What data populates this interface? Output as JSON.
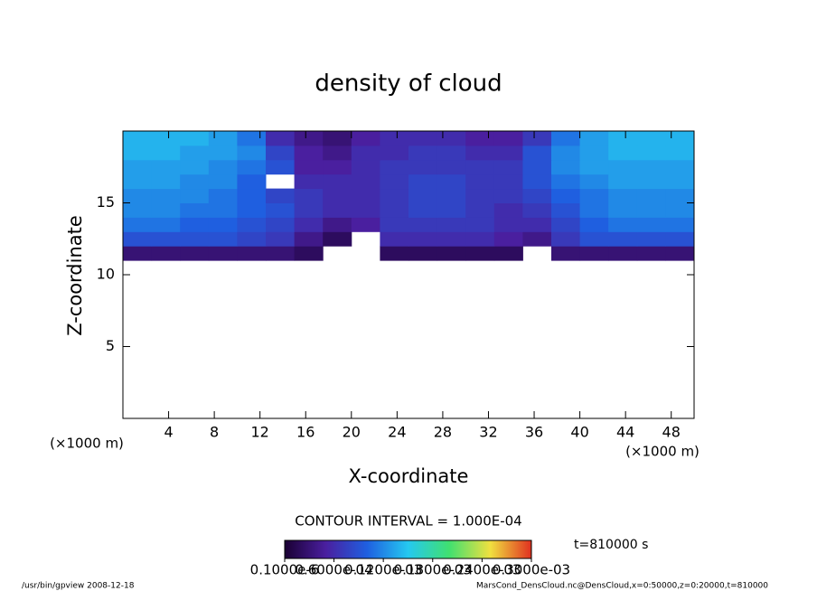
{
  "chart_data": {
    "type": "heatmap",
    "title": "density of cloud",
    "x_label": "X-coordinate",
    "y_label": "Z-coordinate",
    "x_unit": "(×1000 m)",
    "x_unit_right": "(×1000 m)",
    "contour_interval": "CONTOUR INTERVAL = 1.000E-04",
    "time_label": "t=810000 s",
    "footer_left": "/usr/bin/gpview   2008-12-18",
    "footer_right": "MarsCond_DensCloud.nc@DensCloud,x=0:50000,z=0:20000,t=810000",
    "xlim": [
      0,
      50
    ],
    "ylim": [
      0,
      20
    ],
    "xticks": [
      4,
      8,
      12,
      16,
      20,
      24,
      28,
      32,
      36,
      40,
      44,
      48
    ],
    "yticks": [
      5,
      10,
      15
    ],
    "x_edges": [
      0,
      2.5,
      5,
      7.5,
      10,
      12.5,
      15,
      17.5,
      20,
      22.5,
      25,
      27.5,
      30,
      32.5,
      35,
      37.5,
      40,
      42.5,
      45,
      47.5,
      50
    ],
    "z_edges": [
      11,
      12,
      13,
      14,
      15,
      16,
      17,
      18,
      19,
      20
    ],
    "values": [
      [
        3e-05,
        3e-05,
        3e-05,
        3e-05,
        3e-05,
        3e-05,
        2e-05,
        null,
        null,
        2e-05,
        2e-05,
        2e-05,
        2e-05,
        2e-05,
        null,
        3e-05,
        3e-05,
        3e-05,
        3e-05,
        3e-05
      ],
      [
        9e-05,
        9e-05,
        9e-05,
        9e-05,
        8e-05,
        7e-05,
        4e-05,
        2e-05,
        null,
        6e-05,
        6e-05,
        6e-05,
        6e-05,
        5e-05,
        4e-05,
        7e-05,
        9e-05,
        9e-05,
        9e-05,
        9e-05
      ],
      [
        0.00011,
        0.00011,
        0.0001,
        0.0001,
        9e-05,
        8e-05,
        6e-05,
        4e-05,
        5e-05,
        7e-05,
        7e-05,
        7e-05,
        7e-05,
        6e-05,
        6e-05,
        8e-05,
        0.0001,
        0.00011,
        0.00011,
        0.00011
      ],
      [
        0.00012,
        0.00012,
        0.00011,
        0.00011,
        0.0001,
        9e-05,
        7e-05,
        6e-05,
        6e-05,
        7e-05,
        8e-05,
        8e-05,
        7e-05,
        6e-05,
        7e-05,
        9e-05,
        0.00011,
        0.00012,
        0.00012,
        0.00012
      ],
      [
        0.00012,
        0.00012,
        0.00012,
        0.00011,
        0.0001,
        8e-05,
        7e-05,
        6e-05,
        6e-05,
        7e-05,
        8e-05,
        8e-05,
        7e-05,
        7e-05,
        8e-05,
        0.0001,
        0.00011,
        0.00012,
        0.00012,
        0.00012
      ],
      [
        0.00013,
        0.00013,
        0.00012,
        0.00012,
        0.0001,
        null,
        6e-05,
        6e-05,
        6e-05,
        7e-05,
        8e-05,
        8e-05,
        7e-05,
        7e-05,
        9e-05,
        0.00011,
        0.00012,
        0.00013,
        0.00013,
        0.00013
      ],
      [
        0.00013,
        0.00013,
        0.00013,
        0.00012,
        0.00011,
        9e-05,
        5e-05,
        5e-05,
        6e-05,
        7e-05,
        7e-05,
        7e-05,
        7e-05,
        7e-05,
        9e-05,
        0.00012,
        0.00013,
        0.00013,
        0.00013,
        0.00013
      ],
      [
        0.00014,
        0.00014,
        0.00013,
        0.00013,
        0.00012,
        8e-05,
        5e-05,
        4e-05,
        6e-05,
        6e-05,
        7e-05,
        7e-05,
        6e-05,
        6e-05,
        9e-05,
        0.00012,
        0.00013,
        0.00014,
        0.00014,
        0.00014
      ],
      [
        0.00014,
        0.00014,
        0.00014,
        0.00013,
        0.00011,
        6e-05,
        4e-05,
        3e-05,
        5e-05,
        6e-05,
        6e-05,
        6e-05,
        5e-05,
        5e-05,
        7e-05,
        0.00011,
        0.00013,
        0.00014,
        0.00014,
        0.00014
      ]
    ],
    "colormap": [
      "#1a0033",
      "#4a1f9f",
      "#1f5fe0",
      "#25c8f0",
      "#40e070",
      "#f0e040",
      "#e03020"
    ],
    "clim": [
      1e-07,
      0.0003
    ],
    "cticks": [
      {
        "value": 1e-07,
        "label": "0.1000e-6"
      },
      {
        "value": 6e-05,
        "label": "0.6000e-04"
      },
      {
        "value": 0.00012,
        "label": "0.1200e-03"
      },
      {
        "value": 0.00018,
        "label": "0.1800e-03"
      },
      {
        "value": 0.00024,
        "label": "0.2400e-03"
      },
      {
        "value": 0.0003,
        "label": "0.3000e-03"
      }
    ]
  }
}
